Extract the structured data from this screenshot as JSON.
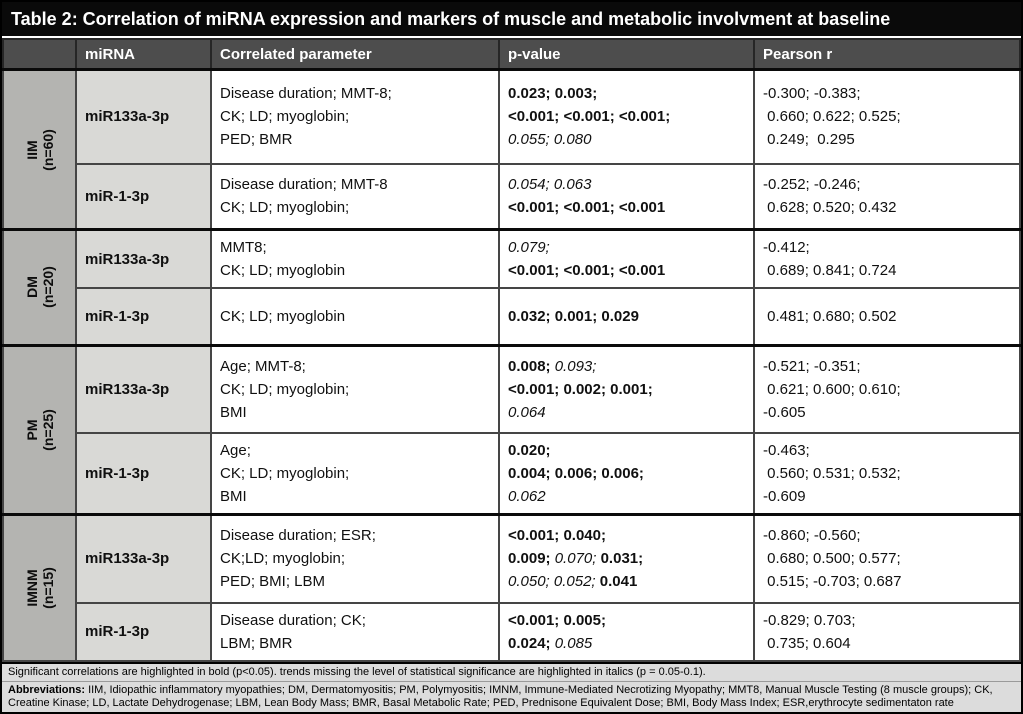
{
  "title": "Table 2: Correlation of miRNA expression and markers of muscle and metabolic involvment at baseline",
  "columns": {
    "corner": "",
    "mirna": "miRNA",
    "parameter": "Correlated parameter",
    "pvalue": "p-value",
    "pearson": "Pearson r"
  },
  "sections": [
    {
      "group": "IIM",
      "n": "(n=60)",
      "rows": [
        {
          "mirna": "miR133a-3p",
          "parameters": [
            "Disease duration; MMT-8;",
            "CK; LD; myoglobin;",
            "PED; BMR"
          ],
          "pvalues": [
            [
              {
                "t": "0.023; 0.003;",
                "s": "b"
              }
            ],
            [
              {
                "t": "<0.001; <0.001; <0.001;",
                "s": "b"
              }
            ],
            [
              {
                "t": "0.055; 0.080",
                "s": "i"
              }
            ]
          ],
          "pearson": [
            "-0.300; -0.383;",
            " 0.660; 0.622; 0.525;",
            " 0.249;  0.295"
          ]
        },
        {
          "mirna": "miR-1-3p",
          "parameters": [
            "Disease duration; MMT-8",
            "CK; LD; myoglobin;"
          ],
          "pvalues": [
            [
              {
                "t": "0.054; 0.063",
                "s": "i"
              }
            ],
            [
              {
                "t": "<0.001; <0.001; <0.001",
                "s": "b"
              }
            ]
          ],
          "pearson": [
            "-0.252; -0.246;",
            " 0.628; 0.520; 0.432"
          ]
        }
      ]
    },
    {
      "group": "DM",
      "n": "(n=20)",
      "rows": [
        {
          "mirna": "miR133a-3p",
          "parameters": [
            "MMT8;",
            "CK; LD; myoglobin"
          ],
          "pvalues": [
            [
              {
                "t": "0.079;",
                "s": "i"
              }
            ],
            [
              {
                "t": "<0.001; <0.001; <0.001",
                "s": "b"
              }
            ]
          ],
          "pearson": [
            "-0.412;",
            " 0.689; 0.841; 0.724"
          ]
        },
        {
          "mirna": "miR-1-3p",
          "parameters": [
            "CK; LD; myoglobin"
          ],
          "pvalues": [
            [
              {
                "t": "0.032; 0.001; 0.029",
                "s": "b"
              }
            ]
          ],
          "pearson": [
            " 0.481; 0.680; 0.502"
          ]
        }
      ]
    },
    {
      "group": "PM",
      "n": "(n=25)",
      "rows": [
        {
          "mirna": "miR133a-3p",
          "parameters": [
            "Age; MMT-8;",
            "CK; LD; myoglobin;",
            "BMI"
          ],
          "pvalues": [
            [
              {
                "t": "0.008;",
                "s": "b"
              },
              {
                "t": " 0.093;",
                "s": "i"
              }
            ],
            [
              {
                "t": "<0.001; 0.002; 0.001;",
                "s": "b"
              }
            ],
            [
              {
                "t": "0.064",
                "s": "i"
              }
            ]
          ],
          "pearson": [
            "-0.521; -0.351;",
            " 0.621; 0.600; 0.610;",
            "-0.605"
          ]
        },
        {
          "mirna": "miR-1-3p",
          "parameters": [
            "Age;",
            "CK; LD; myoglobin;",
            "BMI"
          ],
          "pvalues": [
            [
              {
                "t": "0.020;",
                "s": "b"
              }
            ],
            [
              {
                "t": "0.004; 0.006; 0.006;",
                "s": "b"
              }
            ],
            [
              {
                "t": "0.062",
                "s": "i"
              }
            ]
          ],
          "pearson": [
            "-0.463;",
            " 0.560; 0.531; 0.532;",
            "-0.609"
          ]
        }
      ]
    },
    {
      "group": "IMNM",
      "n": "(n=15)",
      "rows": [
        {
          "mirna": "miR133a-3p",
          "parameters": [
            "Disease duration; ESR;",
            "CK;LD; myoglobin;",
            "PED; BMI; LBM"
          ],
          "pvalues": [
            [
              {
                "t": "<0.001; 0.040;",
                "s": "b"
              }
            ],
            [
              {
                "t": "0.009;",
                "s": "b"
              },
              {
                "t": " 0.070;",
                "s": "i"
              },
              {
                "t": " 0.031;",
                "s": "b"
              }
            ],
            [
              {
                "t": "0.050; 0.052;",
                "s": "i"
              },
              {
                "t": " 0.041",
                "s": "b"
              }
            ]
          ],
          "pearson": [
            "-0.860; -0.560;",
            " 0.680; 0.500; 0.577;",
            " 0.515; -0.703; 0.687"
          ]
        },
        {
          "mirna": "miR-1-3p",
          "parameters": [
            "Disease duration; CK;",
            "LBM; BMR"
          ],
          "pvalues": [
            [
              {
                "t": "<0.001; 0.005;",
                "s": "b"
              }
            ],
            [
              {
                "t": "0.024;",
                "s": "b"
              },
              {
                "t": " 0.085",
                "s": "i"
              }
            ]
          ],
          "pearson": [
            "-0.829; 0.703;",
            " 0.735; 0.604"
          ]
        }
      ]
    }
  ],
  "footnotes": {
    "significance": "Significant correlations are highlighted in bold (p<0.05). trends missing the level of statistical significance are highlighted in italics (p = 0.05-0.1).",
    "abbreviations_label": "Abbreviations:",
    "abbreviations_text": " IIM, Idiopathic inflammatory myopathies; DM, Dermatomyositis; PM, Polymyositis; IMNM, Immune-Mediated Necrotizing Myopathy; MMT8, Manual Muscle Testing (8 muscle groups); CK, Creatine Kinase; LD, Lactate Dehydrogenase; LBM, Lean Body Mass; BMR, Basal Metabolic Rate; PED, Prednisone Equivalent Dose; BMI, Body Mass Index; ESR,erythrocyte sedimentaton rate"
  },
  "colors": {
    "title_bar": "#0a0a0a",
    "header_bg": "#4d4d4d",
    "group_column_bg": "#b4b4b1",
    "mirna_column_bg": "#d9d9d6",
    "footnote_bg": "#dcdcdc"
  }
}
